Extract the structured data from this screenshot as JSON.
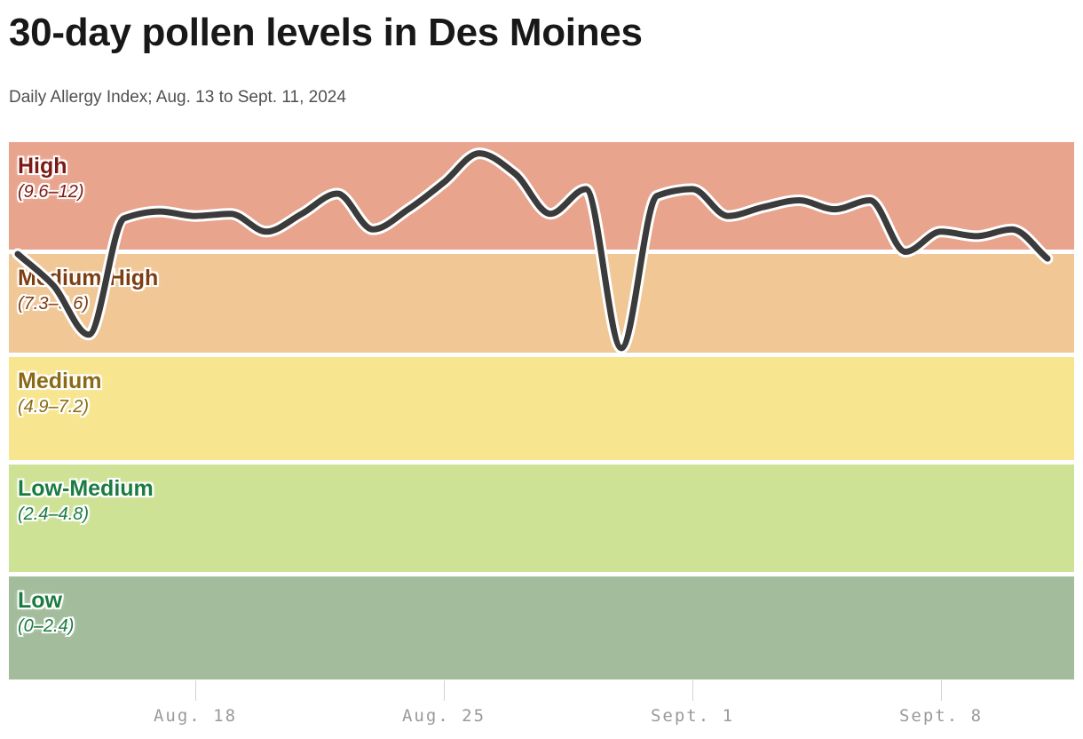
{
  "header": {
    "title": "30-day pollen levels in Des Moines",
    "subtitle": "Daily Allergy Index; Aug. 13 to Sept. 11, 2024"
  },
  "chart_data": {
    "type": "line",
    "title": "30-day pollen levels in Des Moines",
    "subtitle": "Daily Allergy Index; Aug. 13 to Sept. 11, 2024",
    "ylim": [
      0,
      12
    ],
    "grid": false,
    "legend": "none",
    "line_color": "#3B3B3B",
    "bands": [
      {
        "name": "High",
        "range_label": "(9.6–12)",
        "from": 9.6,
        "to": 12,
        "fill": "#E8A48D",
        "label_color": "#7D1A15"
      },
      {
        "name": "Medium-High",
        "range_label": "(7.3–9.6)",
        "from": 7.3,
        "to": 9.6,
        "fill": "#F0C795",
        "label_color": "#7E3E12"
      },
      {
        "name": "Medium",
        "range_label": "(4.9–7.2)",
        "from": 4.9,
        "to": 7.3,
        "fill": "#F8E58F",
        "label_color": "#8A6A15"
      },
      {
        "name": "Low-Medium",
        "range_label": "(2.4–4.8)",
        "from": 2.4,
        "to": 4.9,
        "fill": "#CDE294",
        "label_color": "#1B7C41"
      },
      {
        "name": "Low",
        "range_label": "(0–2.4)",
        "from": 0,
        "to": 2.4,
        "fill": "#A2BC9C",
        "label_color": "#1B7C41"
      }
    ],
    "x_ticks": [
      {
        "label": "Aug. 18",
        "day_index": 5
      },
      {
        "label": "Aug. 25",
        "day_index": 12
      },
      {
        "label": "Sept. 1",
        "day_index": 19
      },
      {
        "label": "Sept. 8",
        "day_index": 26
      }
    ],
    "series": [
      {
        "name": "Daily Allergy Index",
        "color": "#3B3B3B",
        "dates": [
          "Aug. 13",
          "Aug. 14",
          "Aug. 15",
          "Aug. 16",
          "Aug. 17",
          "Aug. 18",
          "Aug. 19",
          "Aug. 20",
          "Aug. 21",
          "Aug. 22",
          "Aug. 23",
          "Aug. 24",
          "Aug. 25",
          "Aug. 26",
          "Aug. 27",
          "Aug. 28",
          "Aug. 29",
          "Aug. 30",
          "Aug. 31",
          "Sept. 1",
          "Sept. 2",
          "Sept. 3",
          "Sept. 4",
          "Sept. 5",
          "Sept. 6",
          "Sept. 7",
          "Sept. 8",
          "Sept. 9",
          "Sept. 10",
          "Sept. 11"
        ],
        "values": [
          9.5,
          8.8,
          7.7,
          10.3,
          10.45,
          10.35,
          10.4,
          10.0,
          10.4,
          10.85,
          10.05,
          10.5,
          11.1,
          11.75,
          11.3,
          10.4,
          10.95,
          7.4,
          10.8,
          10.95,
          10.35,
          10.55,
          10.7,
          10.5,
          10.7,
          9.55,
          10.0,
          9.9,
          10.05,
          9.4
        ]
      }
    ]
  }
}
